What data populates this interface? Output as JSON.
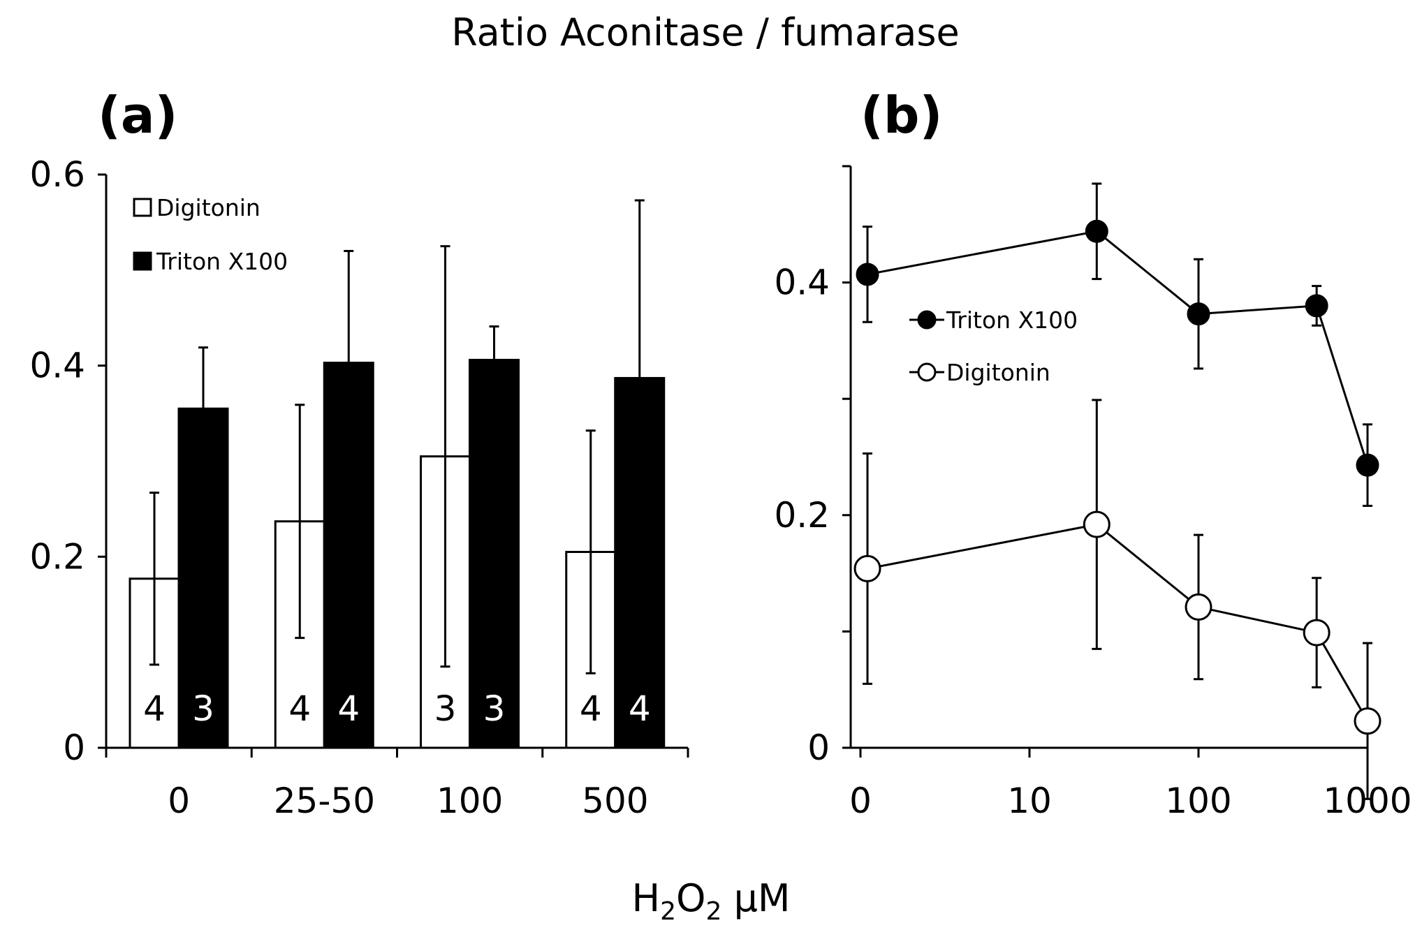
{
  "figure": {
    "title": "Ratio Aconitase / fumarase",
    "xlabel": {
      "main": "H",
      "sub1": "2",
      "mid": "O",
      "sub2": "2",
      "unit": " μM"
    }
  },
  "chart_data": [
    {
      "panel": "(a)",
      "type": "bar",
      "categories": [
        "0",
        "25-50",
        "100",
        "500"
      ],
      "ylim": [
        0,
        0.6
      ],
      "yticks": [
        0,
        0.2,
        0.4,
        0.6
      ],
      "ytick_labels": [
        "0",
        "0.2",
        "0.4",
        "0.6"
      ],
      "xlabel": "H2O2 μM",
      "legend": {
        "position": "top-left"
      },
      "series": [
        {
          "name": "Digitonin",
          "fill": "#ffffff",
          "stroke": "#000000",
          "values": [
            0.177,
            0.237,
            0.305,
            0.205
          ],
          "errors": [
            0.09,
            0.122,
            0.22,
            0.127
          ],
          "n": [
            "4",
            "4",
            "3",
            "4"
          ],
          "n_color": "#000000"
        },
        {
          "name": "Triton X100",
          "fill": "#000000",
          "stroke": "#000000",
          "values": [
            0.355,
            0.403,
            0.406,
            0.387
          ],
          "errors": [
            0.064,
            0.117,
            0.035,
            0.186
          ],
          "n": [
            "3",
            "4",
            "3",
            "4"
          ],
          "n_color": "#ffffff"
        }
      ]
    },
    {
      "panel": "(b)",
      "type": "line",
      "xscale": "log",
      "xticks": [
        1,
        10,
        100,
        1000
      ],
      "xtick_labels": [
        "0",
        "10",
        "100",
        "1000"
      ],
      "ylim": [
        0,
        0.5
      ],
      "yticks": [
        0,
        0.1,
        0.2,
        0.3,
        0.4,
        0.5
      ],
      "ytick_labels": [
        "0",
        "",
        "0.2",
        "",
        "0.4",
        ""
      ],
      "legend": {
        "position": "center-right"
      },
      "series": [
        {
          "name": "Triton X100",
          "marker": "filled-circle",
          "x": [
            1.1,
            25,
            100,
            500,
            1000
          ],
          "y": [
            0.407,
            0.444,
            0.373,
            0.38,
            0.243
          ],
          "err": [
            0.041,
            0.041,
            0.047,
            0.017,
            0.035
          ]
        },
        {
          "name": "Digitonin",
          "marker": "open-circle",
          "x": [
            1.1,
            25,
            100,
            500,
            1000
          ],
          "y": [
            0.154,
            0.192,
            0.121,
            0.099,
            0.023
          ],
          "err": [
            0.099,
            0.107,
            0.062,
            0.047,
            0.067
          ]
        }
      ]
    }
  ]
}
